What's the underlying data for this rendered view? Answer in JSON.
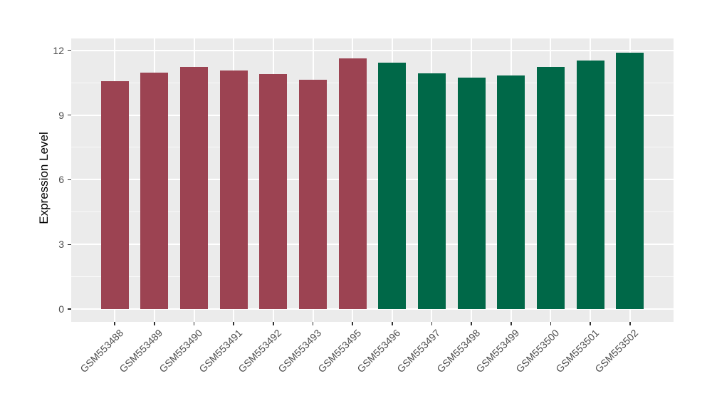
{
  "chart_data": {
    "type": "bar",
    "title": "",
    "xlabel": "",
    "ylabel": "Expression Level",
    "categories": [
      "GSM553488",
      "GSM553489",
      "GSM553490",
      "GSM553491",
      "GSM553492",
      "GSM553493",
      "GSM553495",
      "GSM553496",
      "GSM553497",
      "GSM553498",
      "GSM553499",
      "GSM553500",
      "GSM553501",
      "GSM553502"
    ],
    "values": [
      10.57,
      10.97,
      11.23,
      11.08,
      10.91,
      10.64,
      11.62,
      11.43,
      10.92,
      10.73,
      10.83,
      11.22,
      11.53,
      11.88
    ],
    "groups": [
      "a",
      "a",
      "a",
      "a",
      "a",
      "a",
      "a",
      "b",
      "b",
      "b",
      "b",
      "b",
      "b",
      "b"
    ],
    "group_colors": {
      "a": "#9C4352",
      "b": "#006848"
    },
    "y_ticks": [
      0,
      3,
      6,
      9,
      12
    ],
    "ylim": [
      -0.59,
      12.55
    ],
    "grid": true,
    "legend": false,
    "style": {
      "panel_bg": "#EBEBEB",
      "grid_major_color": "#FFFFFF",
      "grid_minor_color": "#FFFFFF",
      "axis_text_color": "#4D4D4D",
      "tick_mark_color": "#333333"
    }
  }
}
